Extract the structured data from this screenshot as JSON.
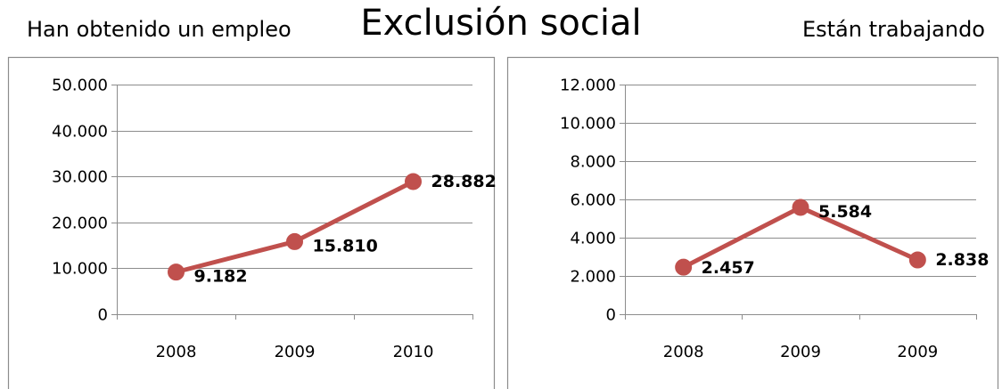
{
  "main_title": "Exclusión social",
  "chart_data": [
    {
      "type": "line",
      "title": "Han obtenido un empleo",
      "xlabel": "",
      "ylabel": "",
      "categories": [
        "2008",
        "2009",
        "2010"
      ],
      "series": [
        {
          "values": [
            9182,
            15810,
            28882
          ]
        }
      ],
      "data_labels": [
        "9.182",
        "15.810",
        "28.882"
      ],
      "y_ticks": [
        0,
        10000,
        20000,
        30000,
        40000,
        50000
      ],
      "y_tick_labels": [
        "0",
        "10.000",
        "20.000",
        "30.000",
        "40.000",
        "50.000"
      ],
      "ylim": [
        0,
        50000
      ],
      "grid": true,
      "legend": "none",
      "color": "#C0504D"
    },
    {
      "type": "line",
      "title": "Están trabajando",
      "xlabel": "",
      "ylabel": "",
      "categories": [
        "2008",
        "2009",
        "2009"
      ],
      "series": [
        {
          "values": [
            2457,
            5584,
            2838
          ]
        }
      ],
      "data_labels": [
        "2.457",
        "5.584",
        "2.838"
      ],
      "y_ticks": [
        0,
        2000,
        4000,
        6000,
        8000,
        10000,
        12000
      ],
      "y_tick_labels": [
        "0",
        "2.000",
        "4.000",
        "6.000",
        "8.000",
        "10.000",
        "12.000"
      ],
      "ylim": [
        0,
        12000
      ],
      "grid": true,
      "legend": "none",
      "color": "#C0504D"
    }
  ]
}
